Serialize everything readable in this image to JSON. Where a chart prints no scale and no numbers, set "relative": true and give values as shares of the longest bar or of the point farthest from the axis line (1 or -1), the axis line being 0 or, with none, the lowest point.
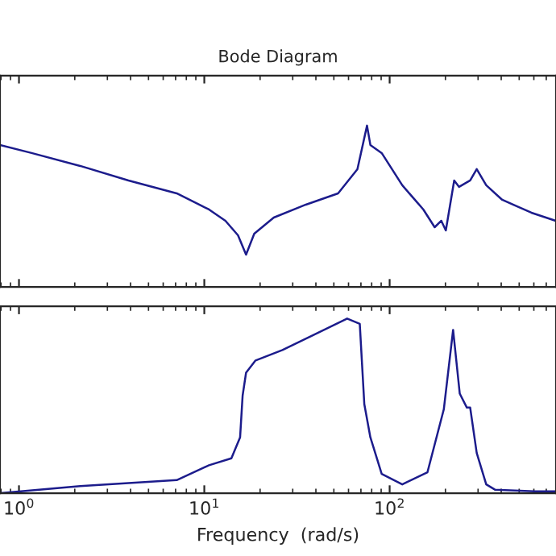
{
  "chart_data": [
    {
      "type": "line",
      "title": "Bode Diagram",
      "relative": true,
      "log": "x",
      "grid": false,
      "tick_labels": false,
      "xlim": [
        0.79,
        790
      ],
      "xticks": [
        {
          "value": 1,
          "label": null
        },
        {
          "value": 10,
          "label": null
        },
        {
          "value": 100,
          "label": null
        }
      ],
      "series": [
        {
          "color": "#1c1c8c",
          "x": [
            0.79,
            1.17,
            2.14,
            3.9,
            7.1,
            10.6,
            13.0,
            15.2,
            16.8,
            18.6,
            23.7,
            35.3,
            52.7,
            67,
            75.5,
            78.7,
            90.6,
            117,
            152,
            175,
            190,
            201,
            223,
            237,
            272,
            295,
            332,
            405,
            582,
            787
          ],
          "values": [
            0.88,
            0.83,
            0.75,
            0.66,
            0.58,
            0.48,
            0.41,
            0.32,
            0.2,
            0.33,
            0.43,
            0.51,
            0.58,
            0.73,
            1.0,
            0.88,
            0.83,
            0.63,
            0.48,
            0.37,
            0.41,
            0.35,
            0.66,
            0.62,
            0.66,
            0.73,
            0.63,
            0.54,
            0.46,
            0.41
          ]
        }
      ]
    },
    {
      "type": "line",
      "xlabel": "Frequency  (rad/s)",
      "relative": true,
      "log": "x",
      "grid": false,
      "tick_labels": "x",
      "xlim": [
        0.79,
        790
      ],
      "xticks": [
        {
          "value": 1,
          "label": "10$^{0}$"
        },
        {
          "value": 10,
          "label": "10$^{1}$"
        },
        {
          "value": 100,
          "label": "10$^{2}$"
        }
      ],
      "series": [
        {
          "color": "#1c1c8c",
          "x": [
            0.79,
            2.14,
            7.1,
            10.6,
            14.0,
            15.6,
            16.1,
            16.8,
            18.9,
            26.4,
            39.5,
            59.0,
            69,
            73,
            78.7,
            90.6,
            117,
            160,
            196,
            220,
            239,
            261,
            272,
            295,
            332,
            370,
            605,
            787
          ],
          "values": [
            0,
            0.04,
            0.075,
            0.16,
            0.2,
            0.32,
            0.56,
            0.69,
            0.76,
            0.82,
            0.91,
            1.0,
            0.97,
            0.51,
            0.32,
            0.11,
            0.05,
            0.12,
            0.48,
            0.935,
            0.57,
            0.49,
            0.49,
            0.23,
            0.05,
            0.02,
            0.01,
            0.01
          ]
        }
      ]
    }
  ]
}
